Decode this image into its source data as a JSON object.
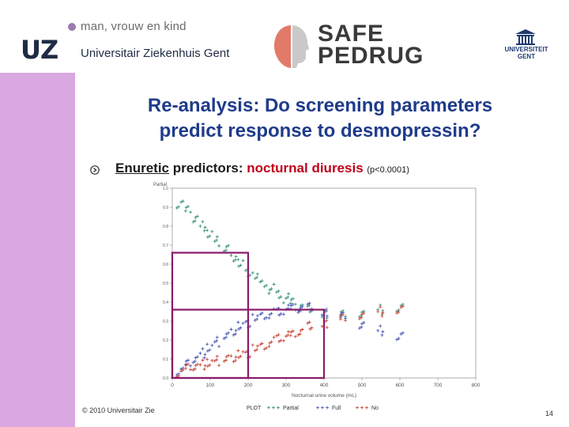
{
  "header": {
    "uz_mark": "UZ",
    "uz_tagline": "man, vrouw en kind",
    "uz_name": "Universitair Ziekenhuis Gent",
    "sp_line1": "SAFE",
    "sp_line2": "PEDRUG",
    "ug_line1": "UNIVERSITEIT",
    "ug_line2": "GENT"
  },
  "slide": {
    "title_line1": "Re-analysis: Do screening parameters",
    "title_line2": "predict response to desmopressin?",
    "bullet_underlined": "Enuretic",
    "bullet_text": " predictors: ",
    "bullet_highlight": "nocturnal diuresis",
    "bullet_pvalue": "(p<0.0001)"
  },
  "footer": {
    "copyright": "© 2010 Universitair Zie",
    "page_number": "14"
  },
  "colors": {
    "sidebar": "#d9a8e0",
    "title": "#1f3b8a",
    "highlight": "#c0001a",
    "box": "#8b1a6b",
    "partial": "#2e8b74",
    "full": "#3a4bb0",
    "no": "#c0392b"
  },
  "chart_data": {
    "type": "scatter",
    "ylabel": "Partial",
    "xlabel": "Nocturnal urine volume (mL)",
    "legend_prefix": "PLOT",
    "x_ticks": [
      "0",
      "100",
      "200",
      "300",
      "400",
      "500",
      "600",
      "700",
      "800"
    ],
    "y_ticks": [
      "0.0",
      "0.1",
      "0.2",
      "0.3",
      "0.4",
      "0.5",
      "0.6",
      "0.7",
      "0.8",
      "0.9",
      "1.0"
    ],
    "xlim": [
      0,
      800
    ],
    "ylim": [
      0,
      1.0
    ],
    "series": [
      {
        "name": "Partial",
        "color": "#2e8b74",
        "x": [
          20,
          40,
          60,
          80,
          100,
          120,
          140,
          160,
          180,
          200,
          220,
          240,
          260,
          280,
          300,
          320,
          340,
          360,
          400,
          450,
          500,
          550,
          600
        ],
        "y": [
          0.92,
          0.88,
          0.84,
          0.8,
          0.76,
          0.72,
          0.68,
          0.64,
          0.6,
          0.56,
          0.53,
          0.5,
          0.47,
          0.44,
          0.42,
          0.4,
          0.38,
          0.36,
          0.34,
          0.33,
          0.34,
          0.36,
          0.37
        ]
      },
      {
        "name": "Full",
        "color": "#3a4bb0",
        "x": [
          20,
          40,
          60,
          80,
          100,
          120,
          140,
          160,
          180,
          200,
          220,
          240,
          260,
          280,
          300,
          320,
          340,
          360,
          400,
          450,
          500,
          550,
          600
        ],
        "y": [
          0.04,
          0.07,
          0.1,
          0.13,
          0.16,
          0.19,
          0.22,
          0.25,
          0.27,
          0.29,
          0.31,
          0.33,
          0.34,
          0.35,
          0.36,
          0.37,
          0.37,
          0.37,
          0.35,
          0.32,
          0.28,
          0.25,
          0.22
        ]
      },
      {
        "name": "No",
        "color": "#c0392b",
        "x": [
          20,
          40,
          60,
          80,
          100,
          120,
          140,
          160,
          180,
          200,
          220,
          240,
          260,
          280,
          300,
          320,
          340,
          360,
          400,
          450,
          500,
          550,
          600
        ],
        "y": [
          0.03,
          0.05,
          0.06,
          0.07,
          0.08,
          0.09,
          0.1,
          0.11,
          0.12,
          0.13,
          0.15,
          0.17,
          0.19,
          0.21,
          0.22,
          0.23,
          0.25,
          0.27,
          0.29,
          0.31,
          0.33,
          0.35,
          0.36
        ]
      }
    ],
    "highlight_boxes": [
      {
        "x0": 0,
        "x1": 200,
        "y0": 0.0,
        "y1": 0.66
      },
      {
        "x0": 0,
        "x1": 400,
        "y0": 0.0,
        "y1": 0.36
      }
    ]
  }
}
